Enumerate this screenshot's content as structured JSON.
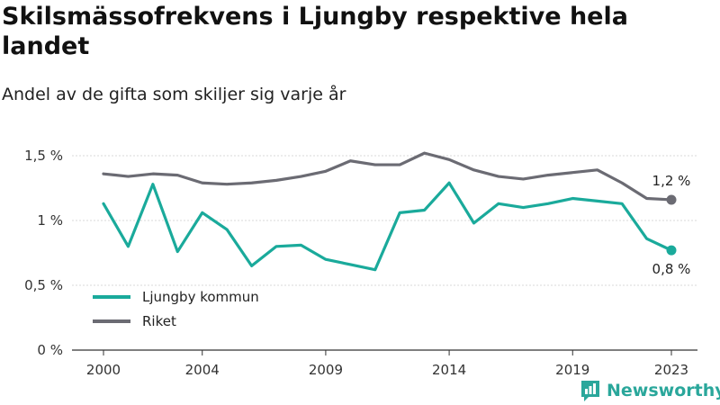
{
  "header": {
    "title": "Skilsmässofrekvens i Ljungby respektive hela landet",
    "subtitle": "Andel av de gifta som skiljer sig varje år"
  },
  "brand": {
    "name": "Newsworthy",
    "logo_icon": "bar-chart-logo-icon",
    "color": "#2aa79b"
  },
  "chart_data": {
    "type": "line",
    "title": "Skilsmässofrekvens i Ljungby respektive hela landet",
    "subtitle": "Andel av de gifta som skiljer sig varje år",
    "xlabel": "",
    "ylabel": "",
    "x": [
      2000,
      2001,
      2002,
      2003,
      2004,
      2005,
      2006,
      2007,
      2008,
      2009,
      2010,
      2011,
      2012,
      2013,
      2014,
      2015,
      2016,
      2017,
      2018,
      2019,
      2020,
      2021,
      2022,
      2023
    ],
    "xticks": [
      "2000",
      "2004",
      "2009",
      "2014",
      "2019",
      "2023"
    ],
    "ylim": [
      0,
      1.5
    ],
    "yticks": [
      0,
      0.5,
      1,
      1.5
    ],
    "ytick_labels": [
      "0 %",
      "0,5 %",
      "1 %",
      "1,5 %"
    ],
    "grid": true,
    "legend_position": "bottom-left",
    "series": [
      {
        "name": "Ljungby kommun",
        "color": "#1aaa9b",
        "values": [
          1.13,
          0.8,
          1.28,
          0.76,
          1.06,
          0.93,
          0.65,
          0.8,
          0.81,
          0.7,
          0.66,
          0.62,
          1.06,
          1.08,
          1.29,
          0.98,
          1.13,
          1.1,
          1.13,
          1.17,
          1.15,
          1.13,
          0.86,
          0.77
        ],
        "end_label": "0,8 %"
      },
      {
        "name": "Riket",
        "color": "#6b6b73",
        "values": [
          1.36,
          1.34,
          1.36,
          1.35,
          1.29,
          1.28,
          1.29,
          1.31,
          1.34,
          1.38,
          1.46,
          1.43,
          1.43,
          1.52,
          1.47,
          1.39,
          1.34,
          1.32,
          1.35,
          1.37,
          1.39,
          1.29,
          1.17,
          1.16
        ],
        "end_label": "1,2 %"
      }
    ]
  }
}
